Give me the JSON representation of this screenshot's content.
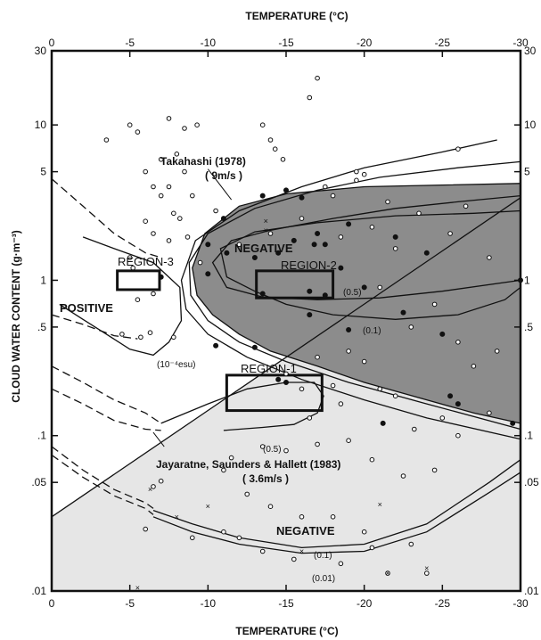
{
  "chart_data": {
    "type": "scatter",
    "title": "",
    "xlabel_top": "TEMPERATURE (°C)",
    "xlabel_bottom": "TEMPERATURE (°C)",
    "ylabel": "CLOUD WATER CONTENT (g·m⁻³)",
    "xlim": [
      0,
      -30
    ],
    "ylim": [
      0.01,
      30
    ],
    "yscale": "log",
    "grid": false,
    "x_ticks": [
      "0",
      "-5",
      "-10",
      "-15",
      "-20",
      "-25",
      "-30"
    ],
    "x_tick_values": [
      0,
      -5,
      -10,
      -15,
      -20,
      -25,
      -30
    ],
    "y_ticks_left": [
      "30",
      "10",
      "5",
      "1",
      ".5",
      ".1",
      ".05",
      ".01"
    ],
    "y_ticks_right": [
      "30",
      "10",
      "5",
      "1",
      ".5",
      ".1",
      ".05",
      ".01"
    ],
    "y_tick_values": [
      30,
      10,
      5,
      1,
      0.5,
      0.1,
      0.05,
      0.01
    ],
    "colors": {
      "dark_region": "#8c8c8c",
      "light_region": "#e6e6e6",
      "ink": "#111111"
    },
    "annotations": {
      "takahashi_1": "Takahashi (1978)",
      "takahashi_2": "( 9m/s )",
      "jsh_1": "Jayaratne, Saunders & Hallett (1983)",
      "jsh_2": "( 3.6m/s )",
      "positive": "POSITIVE",
      "negative_upper": "NEGATIVE",
      "negative_lower": "NEGATIVE",
      "region1": "REGION-1",
      "region2": "REGION-2",
      "region3": "REGION-3",
      "c_05_upper": "(0.5)",
      "c_01_upper": "(0.1)",
      "c_esu": "(10⁻⁴esu)",
      "c_05_lower": "(0.5)",
      "c_01_lower": "(0.1)",
      "c_001_lower": "(0.01)"
    },
    "points_open": [
      [
        -17,
        20
      ],
      [
        -16.5,
        15
      ],
      [
        -3.5,
        8
      ],
      [
        -5,
        10
      ],
      [
        -5.5,
        9
      ],
      [
        -7.5,
        11
      ],
      [
        -8.5,
        9.5
      ],
      [
        -9.3,
        10
      ],
      [
        -13.5,
        10
      ],
      [
        -14,
        8
      ],
      [
        -14.3,
        7
      ],
      [
        -14.8,
        6
      ],
      [
        -17.5,
        4
      ],
      [
        -18,
        3.5
      ],
      [
        -19.5,
        5
      ],
      [
        -19.5,
        4.4
      ],
      [
        -20,
        4.8
      ],
      [
        -26,
        7
      ],
      [
        -8,
        6.5
      ],
      [
        -7,
        6
      ],
      [
        -6,
        5
      ],
      [
        -8.5,
        5
      ],
      [
        -6.5,
        4
      ],
      [
        -7.5,
        4
      ],
      [
        -7,
        3.5
      ],
      [
        -9,
        3.5
      ],
      [
        -6,
        2.4
      ],
      [
        -7.8,
        2.7
      ],
      [
        -8.2,
        2.5
      ],
      [
        -6.5,
        2
      ],
      [
        -7.5,
        1.8
      ],
      [
        -8.7,
        1.9
      ],
      [
        -5,
        1.4
      ],
      [
        -5.2,
        1.2
      ],
      [
        -9.5,
        1.3
      ],
      [
        -5.5,
        0.75
      ],
      [
        -6.5,
        0.82
      ],
      [
        -4.5,
        0.45
      ],
      [
        -5.7,
        0.43
      ],
      [
        -6.3,
        0.46
      ],
      [
        -7.8,
        0.43
      ],
      [
        -10.5,
        2.8
      ],
      [
        -12,
        1.7
      ],
      [
        -14,
        2
      ],
      [
        -16,
        2.5
      ],
      [
        -18.5,
        1.9
      ],
      [
        -20.5,
        2.2
      ],
      [
        -21.5,
        3.2
      ],
      [
        -23.5,
        2.7
      ],
      [
        -25.5,
        2
      ],
      [
        -26.5,
        3
      ],
      [
        -28,
        1.4
      ],
      [
        -22,
        1.6
      ],
      [
        -21,
        0.9
      ],
      [
        -23,
        0.5
      ],
      [
        -24.5,
        0.7
      ],
      [
        -26,
        0.4
      ],
      [
        -27,
        0.28
      ],
      [
        -28.5,
        0.35
      ],
      [
        -19,
        0.35
      ],
      [
        -20,
        0.3
      ],
      [
        -21,
        0.2
      ],
      [
        -17,
        0.32
      ],
      [
        -16,
        0.2
      ],
      [
        -15,
        0.25
      ],
      [
        -18,
        0.21
      ],
      [
        -22,
        0.18
      ],
      [
        -23.2,
        0.11
      ],
      [
        -25,
        0.13
      ],
      [
        -26,
        0.1
      ],
      [
        -28,
        0.14
      ],
      [
        -16.5,
        0.13
      ],
      [
        -18.5,
        0.16
      ],
      [
        -6.5,
        0.047
      ],
      [
        -7,
        0.051
      ],
      [
        -11,
        0.06
      ],
      [
        -11.5,
        0.072
      ],
      [
        -13.5,
        0.085
      ],
      [
        -15,
        0.08
      ],
      [
        -17,
        0.088
      ],
      [
        -19,
        0.093
      ],
      [
        -20.5,
        0.07
      ],
      [
        -22.5,
        0.055
      ],
      [
        -24.5,
        0.06
      ],
      [
        -12.5,
        0.042
      ],
      [
        -14,
        0.035
      ],
      [
        -16,
        0.03
      ],
      [
        -18,
        0.03
      ],
      [
        -20,
        0.024
      ],
      [
        -11,
        0.024
      ],
      [
        -12,
        0.022
      ],
      [
        -20.5,
        0.019
      ],
      [
        -23,
        0.02
      ],
      [
        -9,
        0.022
      ],
      [
        -13.5,
        0.018
      ],
      [
        -15.5,
        0.016
      ],
      [
        -18.5,
        0.015
      ],
      [
        -21.5,
        0.013
      ],
      [
        -24,
        0.013
      ],
      [
        -6,
        0.025
      ]
    ],
    "points_filled": [
      [
        -7,
        1.05
      ],
      [
        -10,
        1.1
      ],
      [
        -13,
        1.4
      ],
      [
        -15.5,
        1.8
      ],
      [
        -16.8,
        1.7
      ],
      [
        -17.5,
        1.7
      ],
      [
        -13.5,
        0.82
      ],
      [
        -16.5,
        0.85
      ],
      [
        -17.5,
        0.8
      ],
      [
        -19,
        0.48
      ],
      [
        -22.5,
        0.62
      ],
      [
        -25,
        0.45
      ],
      [
        -30,
        1
      ],
      [
        -13,
        0.37
      ],
      [
        -10.5,
        0.38
      ],
      [
        -25.5,
        0.18
      ],
      [
        -26,
        0.16
      ],
      [
        -29.5,
        0.12
      ],
      [
        -15,
        0.22
      ],
      [
        -14.5,
        0.23
      ],
      [
        -13.5,
        3.5
      ],
      [
        -15,
        3.8
      ],
      [
        -16,
        3.4
      ],
      [
        -11,
        2.5
      ],
      [
        -11.2,
        1.5
      ],
      [
        -14.5,
        1.5
      ],
      [
        -17,
        2
      ],
      [
        -19,
        2.3
      ],
      [
        -16.5,
        0.6
      ],
      [
        -20,
        0.9
      ],
      [
        -22,
        1.9
      ],
      [
        -24,
        1.5
      ],
      [
        -18.5,
        1.2
      ],
      [
        -10,
        1.7
      ],
      [
        -21.2,
        0.12
      ]
    ],
    "points_cross": [
      [
        -13.7,
        2.4
      ],
      [
        -13.7,
        2.1
      ],
      [
        -6.3,
        0.045
      ],
      [
        -8,
        0.03
      ],
      [
        -10,
        0.035
      ],
      [
        -16,
        0.018
      ],
      [
        -21,
        0.036
      ],
      [
        -21.5,
        0.013
      ],
      [
        -24,
        0.014
      ],
      [
        -5.5,
        0.0105
      ]
    ]
  }
}
